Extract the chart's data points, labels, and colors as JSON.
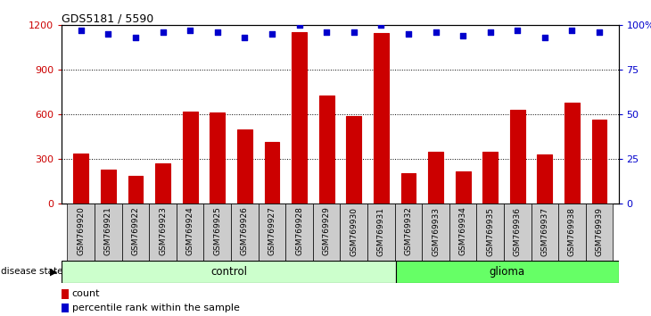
{
  "title": "GDS5181 / 5590",
  "samples": [
    "GSM769920",
    "GSM769921",
    "GSM769922",
    "GSM769923",
    "GSM769924",
    "GSM769925",
    "GSM769926",
    "GSM769927",
    "GSM769928",
    "GSM769929",
    "GSM769930",
    "GSM769931",
    "GSM769932",
    "GSM769933",
    "GSM769934",
    "GSM769935",
    "GSM769936",
    "GSM769937",
    "GSM769938",
    "GSM769939"
  ],
  "counts": [
    340,
    230,
    190,
    270,
    620,
    615,
    500,
    415,
    1155,
    730,
    590,
    1150,
    205,
    350,
    220,
    350,
    630,
    330,
    680,
    565
  ],
  "percentile_ranks": [
    97,
    95,
    93,
    96,
    97,
    96,
    93,
    95,
    100,
    96,
    96,
    100,
    95,
    96,
    94,
    96,
    97,
    93,
    97,
    96
  ],
  "n_control": 12,
  "n_glioma": 8,
  "ylim_left": [
    0,
    1200
  ],
  "ylim_right": [
    0,
    100
  ],
  "yticks_left": [
    0,
    300,
    600,
    900,
    1200
  ],
  "yticks_right": [
    0,
    25,
    50,
    75,
    100
  ],
  "bar_color": "#cc0000",
  "dot_color": "#0000cc",
  "control_color": "#ccffcc",
  "glioma_color": "#66ff66",
  "bg_color": "#cccccc",
  "legend_count_color": "#cc0000",
  "legend_pct_color": "#0000cc",
  "gridline_yticks": [
    300,
    600,
    900
  ]
}
